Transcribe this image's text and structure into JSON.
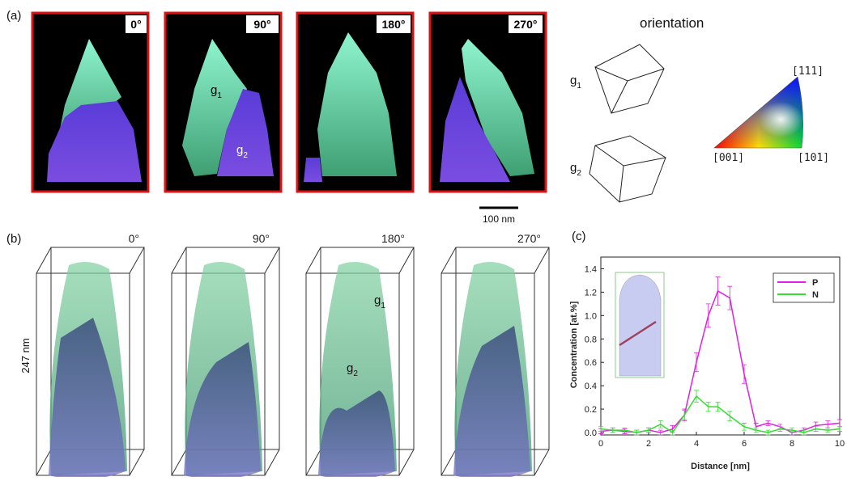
{
  "panel_a": {
    "label": "(a)",
    "angles": [
      "0°",
      "90°",
      "180°",
      "270°"
    ],
    "g1": {
      "base": "g",
      "sub": "1"
    },
    "g2": {
      "base": "g",
      "sub": "2"
    },
    "orientation_title": "orientation",
    "orientation_g1": {
      "base": "g",
      "sub": "1"
    },
    "orientation_g2": {
      "base": "g",
      "sub": "2"
    },
    "key_111": "[111]",
    "key_001": "[001]",
    "key_101": "[101]",
    "scale_bar": "100 nm"
  },
  "panel_b": {
    "label": "(b)",
    "angles": [
      "0°",
      "90°",
      "180°",
      "270°"
    ],
    "height_label": "247 nm",
    "g1": {
      "base": "g",
      "sub": "1"
    },
    "g2": {
      "base": "g",
      "sub": "2"
    }
  },
  "panel_c_label": "(c)",
  "chart_data": {
    "type": "line",
    "x_label": "Distance [nm]",
    "y_label": "Concentration [at.%]",
    "x": [
      0,
      0.5,
      1,
      1.5,
      2,
      2.5,
      3,
      3.5,
      4,
      4.5,
      4.9,
      5.4,
      6,
      6.5,
      7,
      7.5,
      8,
      8.5,
      9,
      9.5,
      10
    ],
    "series": [
      {
        "name": "P",
        "color": "#e020e0",
        "values": [
          0.01,
          0.02,
          0.01,
          0.0,
          0.02,
          0.0,
          0.03,
          0.15,
          0.6,
          1.0,
          1.21,
          1.15,
          0.5,
          0.05,
          0.08,
          0.05,
          0.0,
          0.02,
          0.06,
          0.07,
          0.08
        ],
        "errors": [
          0.02,
          0.02,
          0.02,
          0.02,
          0.02,
          0.02,
          0.03,
          0.05,
          0.08,
          0.1,
          0.12,
          0.1,
          0.08,
          0.03,
          0.02,
          0.02,
          0.02,
          0.02,
          0.03,
          0.03,
          0.03
        ]
      },
      {
        "name": "N",
        "color": "#33dd33",
        "values": [
          0.03,
          0.02,
          0.02,
          0.0,
          0.02,
          0.07,
          0.0,
          0.15,
          0.31,
          0.22,
          0.22,
          0.14,
          0.05,
          0.02,
          0.0,
          0.03,
          0.02,
          0.0,
          0.03,
          0.02,
          0.03
        ],
        "errors": [
          0.02,
          0.02,
          0.02,
          0.02,
          0.02,
          0.03,
          0.02,
          0.04,
          0.05,
          0.04,
          0.04,
          0.04,
          0.03,
          0.02,
          0.02,
          0.02,
          0.02,
          0.02,
          0.02,
          0.02,
          0.02
        ]
      }
    ],
    "xlim": [
      0,
      10
    ],
    "ylim": [
      0,
      1.5
    ],
    "xticks": [
      0,
      2,
      4,
      6,
      8,
      10
    ],
    "yticks": [
      {
        "value": 0,
        "label": "0.0"
      },
      0.2,
      0.4,
      0.6,
      0.8,
      {
        "value": 1,
        "label": "1.0"
      },
      1.2,
      1.4
    ],
    "legend": "upper right"
  }
}
